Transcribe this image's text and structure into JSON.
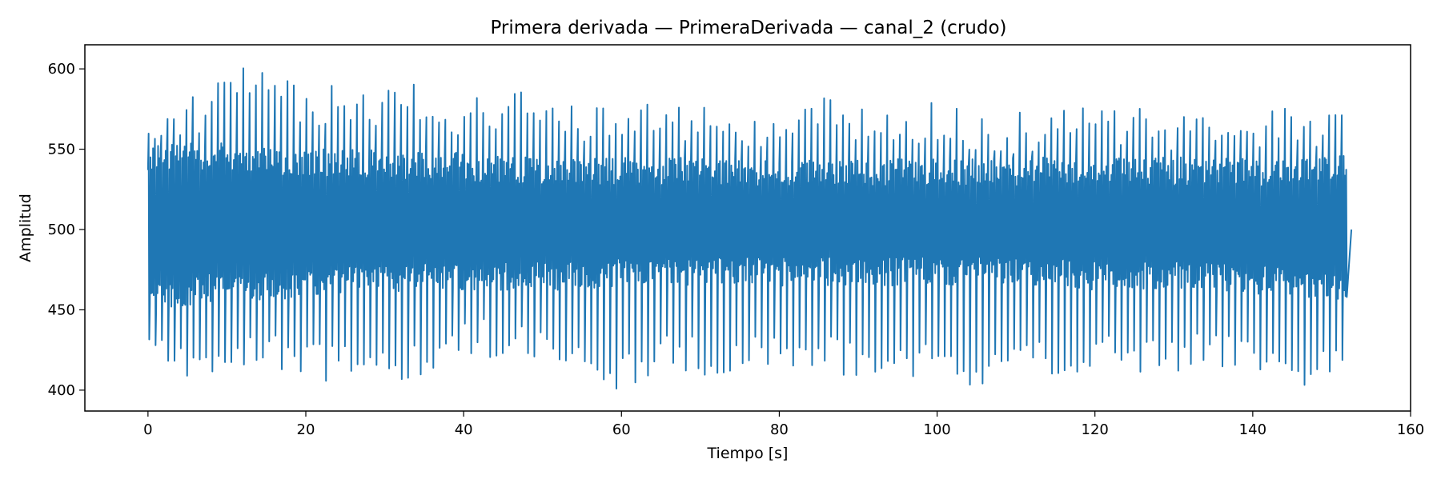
{
  "chart_data": {
    "type": "line",
    "title": "Primera derivada — PrimeraDerivada — canal_2 (crudo)",
    "xlabel": "Tiempo [s]",
    "ylabel": "Amplitud",
    "xlim": [
      -8,
      160
    ],
    "ylim": [
      387,
      615
    ],
    "x_ticks": [
      0,
      20,
      40,
      60,
      80,
      100,
      120,
      140,
      160
    ],
    "y_ticks": [
      400,
      450,
      500,
      550,
      600
    ],
    "grid": false,
    "legend": "none",
    "series": [
      {
        "color": "#1f77b4",
        "x_range": [
          0,
          152.5
        ],
        "beat_interval_s": 0.8,
        "approx_envelope": {
          "peak_upper": [
            578,
            588,
            605,
            593,
            588,
            593,
            580,
            588,
            578,
            575,
            582,
            578,
            575,
            585,
            575,
            580,
            575,
            575,
            588,
            575,
            573,
            578,
            575,
            588
          ],
          "core_upper": [
            552,
            555,
            552,
            550,
            550,
            548,
            548,
            545,
            545,
            545,
            545,
            545,
            545,
            545,
            545,
            545,
            545,
            545,
            545,
            545,
            545,
            545,
            545,
            548
          ],
          "core_lower": [
            448,
            455,
            455,
            458,
            460,
            462,
            462,
            462,
            462,
            465,
            465,
            465,
            465,
            465,
            465,
            465,
            465,
            465,
            462,
            462,
            462,
            460,
            458,
            455
          ],
          "trough_lower": [
            422,
            400,
            412,
            405,
            405,
            405,
            420,
            418,
            410,
            398,
            412,
            408,
            410,
            410,
            403,
            410,
            398,
            405,
            410,
            410,
            410,
            412,
            398,
            415
          ]
        }
      }
    ]
  }
}
